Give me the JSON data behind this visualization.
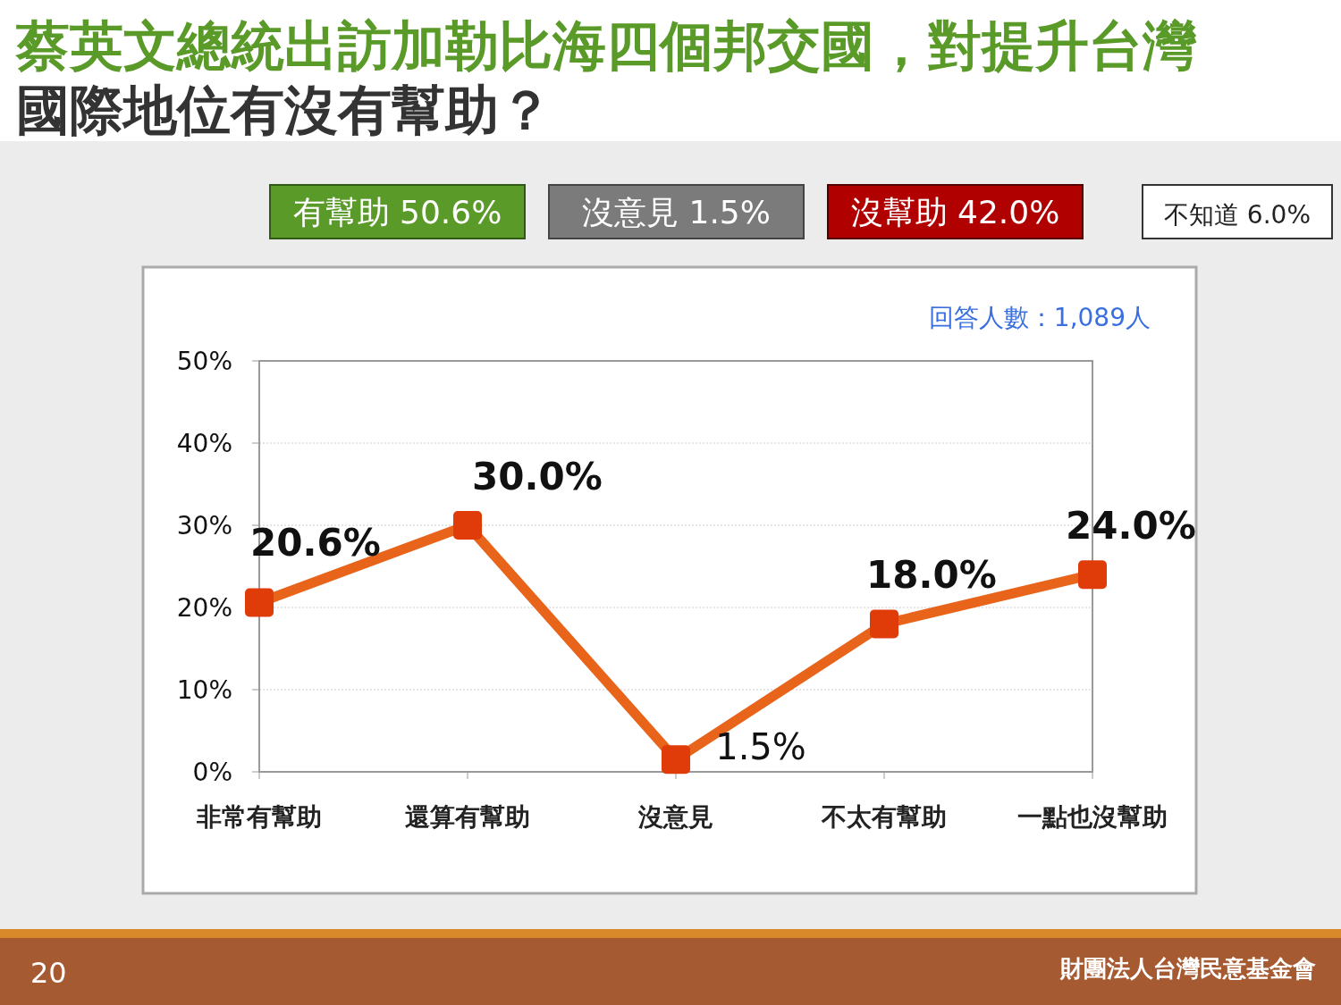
{
  "chart_data": {
    "type": "line",
    "title": "蔡英文總統出訪加勒比海四個邦交國，對提升台灣國際地位有沒有幫助？",
    "categories": [
      "非常有幫助",
      "還算有幫助",
      "沒意見",
      "不太有幫助",
      "一點也沒幫助"
    ],
    "series": [
      {
        "color": "#e8641b",
        "values": [
          20.6,
          30.0,
          1.5,
          18.0,
          24.0
        ],
        "value_labels": [
          "20.6%",
          "30.0%",
          "1.5%",
          "18.0%",
          "24.0%"
        ]
      }
    ],
    "ylim": [
      0,
      50
    ],
    "yticks": [
      {
        "value": 0,
        "label": "0%"
      },
      {
        "value": 10,
        "label": "10%"
      },
      {
        "value": 20,
        "label": "20%"
      },
      {
        "value": 30,
        "label": "30%"
      },
      {
        "value": 40,
        "label": "40%"
      },
      {
        "value": 50,
        "label": "50%"
      }
    ],
    "grid": "y",
    "marker": "square",
    "line_style": "solid",
    "annotations": [
      "有幫助 50.6%",
      "沒意見 1.5%",
      "沒幫助 42.0%",
      "不知道 6.0%",
      "回答人數：1,089人",
      "20",
      "財團法人台灣民意基金會"
    ]
  }
}
